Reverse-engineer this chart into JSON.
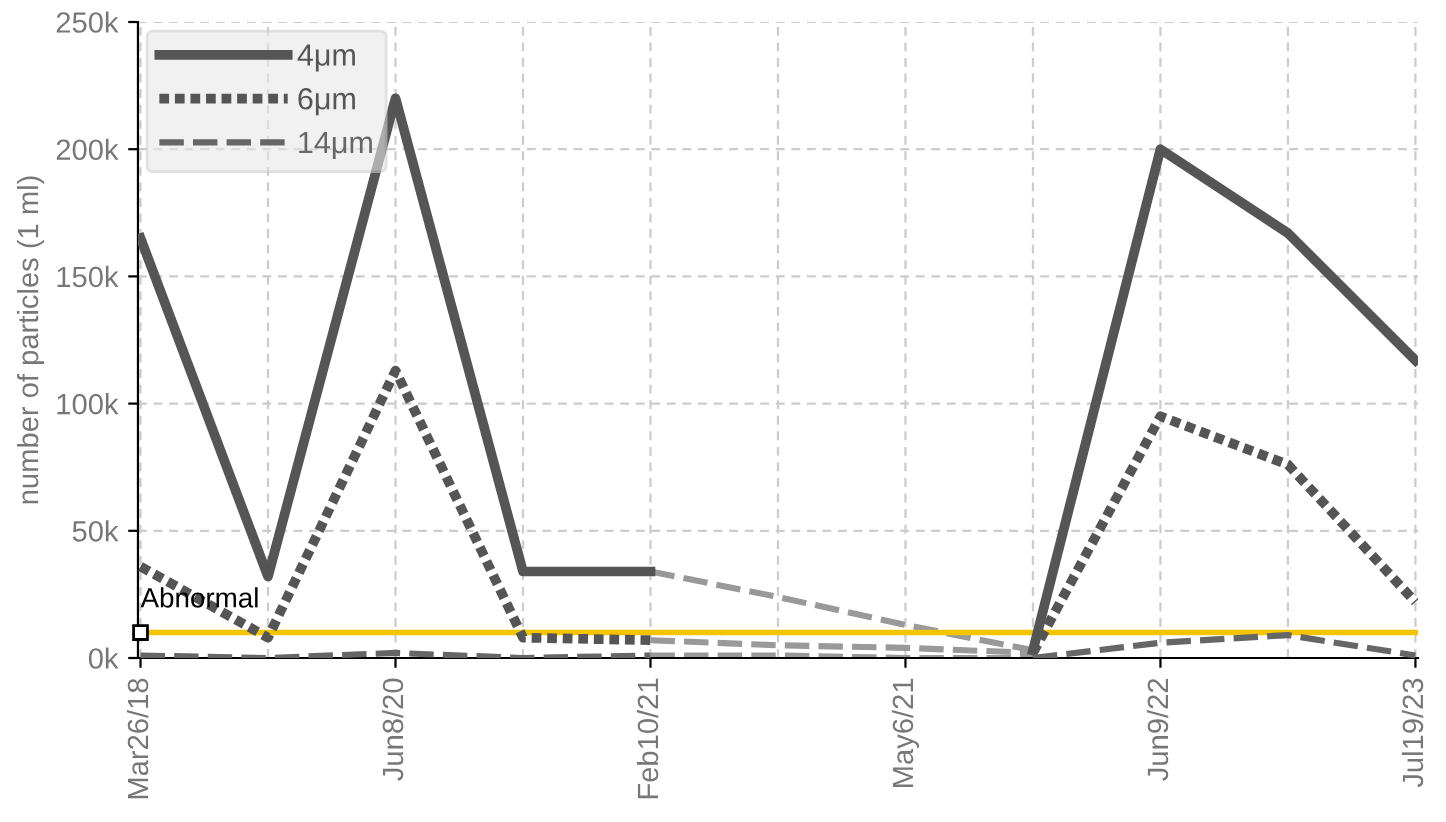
{
  "chart_data": {
    "type": "line",
    "ylabel": "number of particles (1 ml)",
    "categories": [
      "Mar26/18",
      null,
      "Jun8/20",
      null,
      "Feb10/21",
      null,
      "May6/21",
      null,
      "Jun9/22",
      null,
      "Jul19/23"
    ],
    "series": [
      {
        "name": "4μm",
        "color": "#555555",
        "line_style": "solid",
        "values": [
          165000,
          32000,
          220000,
          34000,
          34000,
          null,
          null,
          3000,
          200000,
          167000,
          117000
        ]
      },
      {
        "name": "6μm",
        "color": "#555555",
        "line_style": "dotted",
        "values": [
          36000,
          8000,
          113000,
          8000,
          7000,
          null,
          null,
          2000,
          95000,
          76000,
          22000
        ]
      },
      {
        "name": "14μm",
        "color": "#666666",
        "line_style": "dashed",
        "values": [
          1000,
          0,
          2000,
          0,
          1000,
          null,
          null,
          0,
          6000,
          9000,
          1000
        ]
      },
      {
        "color": "#999999",
        "line_style": "dashed",
        "values": [
          null,
          null,
          null,
          null,
          34000,
          24000,
          13000,
          3000,
          null,
          null,
          null
        ]
      },
      {
        "color": "#999999",
        "line_style": "dashed",
        "values": [
          null,
          null,
          null,
          null,
          7000,
          5000,
          4000,
          2000,
          null,
          null,
          null
        ]
      },
      {
        "color": "#999999",
        "line_style": "dashed",
        "values": [
          null,
          null,
          null,
          null,
          1000,
          1000,
          0,
          0,
          null,
          null,
          null
        ]
      }
    ],
    "ylim": [
      0,
      250000
    ],
    "yticks": [
      {
        "value": 0,
        "label": "0k"
      },
      {
        "value": 50000,
        "label": "50k"
      },
      {
        "value": 100000,
        "label": "100k"
      },
      {
        "value": 150000,
        "label": "150k"
      },
      {
        "value": 200000,
        "label": "200k"
      },
      {
        "value": 250000,
        "label": "250k"
      }
    ],
    "ref_lines": [
      {
        "axis": "y",
        "value": 10000,
        "label": "Abnormal",
        "color": "#f5c400"
      }
    ],
    "grid": true,
    "legend": "top left",
    "marker": "none"
  }
}
